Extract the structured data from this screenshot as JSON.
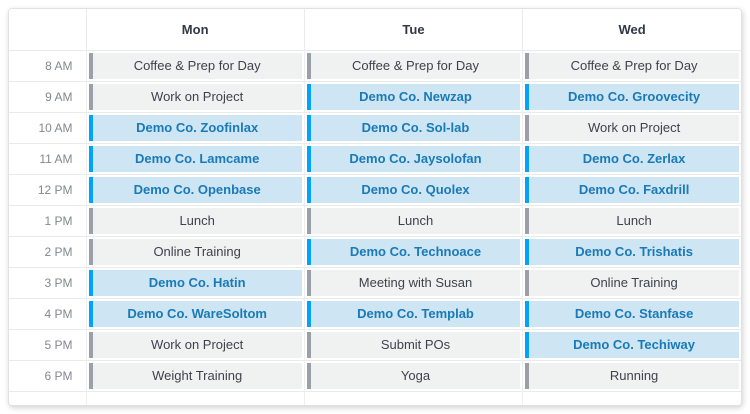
{
  "table": {
    "columns": [
      "Mon",
      "Tue",
      "Wed"
    ],
    "time_rows": [
      {
        "time": "8 AM",
        "events": [
          {
            "label": "Coffee & Prep for Day",
            "type": "regular"
          },
          {
            "label": "Coffee & Prep for Day",
            "type": "regular"
          },
          {
            "label": "Coffee & Prep for Day",
            "type": "regular"
          }
        ]
      },
      {
        "time": "9 AM",
        "events": [
          {
            "label": "Work on Project",
            "type": "regular"
          },
          {
            "label": "Demo Co. Newzap",
            "type": "demo"
          },
          {
            "label": "Demo Co. Groovecity",
            "type": "demo"
          }
        ]
      },
      {
        "time": "10 AM",
        "events": [
          {
            "label": "Demo Co. Zoofinlax",
            "type": "demo"
          },
          {
            "label": "Demo Co. Sol-lab",
            "type": "demo"
          },
          {
            "label": "Work on Project",
            "type": "regular"
          }
        ]
      },
      {
        "time": "11 AM",
        "events": [
          {
            "label": "Demo Co. Lamcame",
            "type": "demo"
          },
          {
            "label": "Demo Co. Jaysolofan",
            "type": "demo"
          },
          {
            "label": "Demo Co. Zerlax",
            "type": "demo"
          }
        ]
      },
      {
        "time": "12 PM",
        "events": [
          {
            "label": "Demo Co. Openbase",
            "type": "demo"
          },
          {
            "label": "Demo Co. Quolex",
            "type": "demo"
          },
          {
            "label": "Demo Co. Faxdrill",
            "type": "demo"
          }
        ]
      },
      {
        "time": "1 PM",
        "events": [
          {
            "label": "Lunch",
            "type": "regular"
          },
          {
            "label": "Lunch",
            "type": "regular"
          },
          {
            "label": "Lunch",
            "type": "regular"
          }
        ]
      },
      {
        "time": "2 PM",
        "events": [
          {
            "label": "Online Training",
            "type": "regular"
          },
          {
            "label": "Demo Co. Technoace",
            "type": "demo"
          },
          {
            "label": "Demo Co. Trishatis",
            "type": "demo"
          }
        ]
      },
      {
        "time": "3 PM",
        "events": [
          {
            "label": "Demo Co. Hatin",
            "type": "demo"
          },
          {
            "label": "Meeting with Susan",
            "type": "regular"
          },
          {
            "label": "Online Training",
            "type": "regular"
          }
        ]
      },
      {
        "time": "4 PM",
        "events": [
          {
            "label": "Demo Co. WareSoltom",
            "type": "demo"
          },
          {
            "label": "Demo Co. Templab",
            "type": "demo"
          },
          {
            "label": "Demo Co. Stanfase",
            "type": "demo"
          }
        ]
      },
      {
        "time": "5 PM",
        "events": [
          {
            "label": "Work on Project",
            "type": "regular"
          },
          {
            "label": "Submit POs",
            "type": "regular"
          },
          {
            "label": "Demo Co. Techiway",
            "type": "demo"
          }
        ]
      },
      {
        "time": "6 PM",
        "events": [
          {
            "label": "Weight Training",
            "type": "regular"
          },
          {
            "label": "Yoga",
            "type": "regular"
          },
          {
            "label": "Running",
            "type": "regular"
          }
        ]
      }
    ]
  },
  "colors": {
    "demo_accent": "#00a2fc",
    "demo_background": "#cee5f3",
    "demo_text": "#197ab7",
    "regular_accent": "#9ba0a8",
    "regular_background": "#f0f1f1",
    "regular_text": "#3d424c",
    "time_text": "#83878f",
    "header_text": "#323845",
    "grid_border": "#e8eaeb"
  }
}
